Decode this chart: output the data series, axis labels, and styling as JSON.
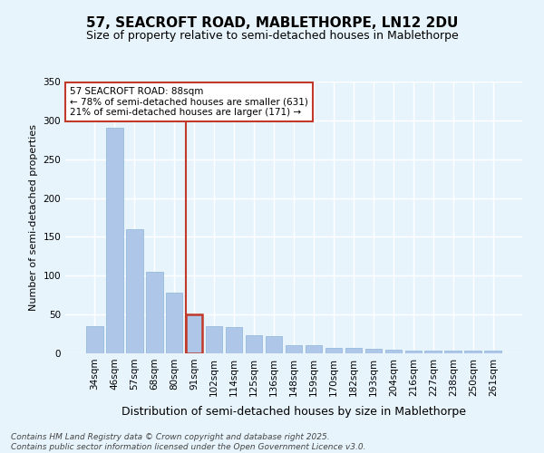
{
  "title": "57, SEACROFT ROAD, MABLETHORPE, LN12 2DU",
  "subtitle": "Size of property relative to semi-detached houses in Mablethorpe",
  "xlabel": "Distribution of semi-detached houses by size in Mablethorpe",
  "ylabel": "Number of semi-detached properties",
  "categories": [
    "34sqm",
    "46sqm",
    "57sqm",
    "68sqm",
    "80sqm",
    "91sqm",
    "102sqm",
    "114sqm",
    "125sqm",
    "136sqm",
    "148sqm",
    "159sqm",
    "170sqm",
    "182sqm",
    "193sqm",
    "204sqm",
    "216sqm",
    "227sqm",
    "238sqm",
    "250sqm",
    "261sqm"
  ],
  "values": [
    35,
    290,
    160,
    105,
    78,
    50,
    35,
    34,
    23,
    22,
    11,
    10,
    7,
    7,
    6,
    5,
    4,
    3,
    3,
    3,
    4
  ],
  "bar_color": "#aec6e8",
  "highlight_bar_index": 5,
  "highlight_bar_color": "#c0392b",
  "annotation_text": "57 SEACROFT ROAD: 88sqm\n← 78% of semi-detached houses are smaller (631)\n21% of semi-detached houses are larger (171) →",
  "annotation_box_color": "#ffffff",
  "annotation_box_edge_color": "#c0392b",
  "vline_color": "#c0392b",
  "ylim": [
    0,
    350
  ],
  "yticks": [
    0,
    50,
    100,
    150,
    200,
    250,
    300,
    350
  ],
  "background_color": "#e8f4fc",
  "grid_color": "#ffffff",
  "footer": "Contains HM Land Registry data © Crown copyright and database right 2025.\nContains public sector information licensed under the Open Government Licence v3.0.",
  "title_fontsize": 11,
  "subtitle_fontsize": 9,
  "xlabel_fontsize": 9,
  "ylabel_fontsize": 8,
  "tick_fontsize": 7.5,
  "annotation_fontsize": 7.5,
  "footer_fontsize": 6.5
}
